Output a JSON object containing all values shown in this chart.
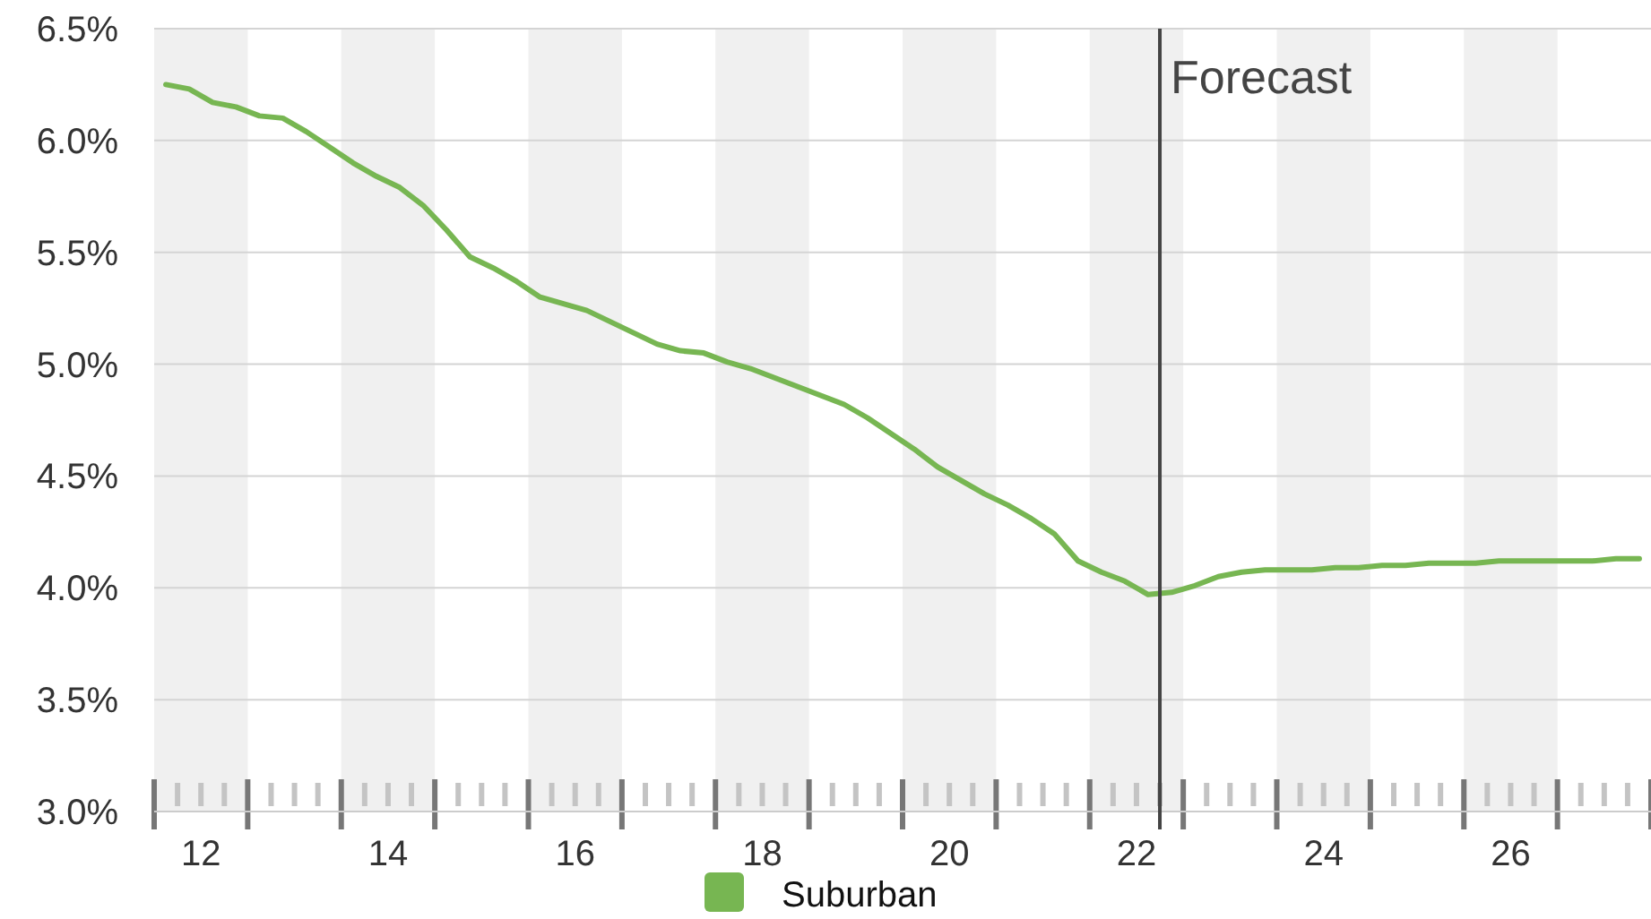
{
  "chart_data": {
    "type": "line",
    "x": [
      12.125,
      12.375,
      12.625,
      12.875,
      13.125,
      13.375,
      13.625,
      13.875,
      14.125,
      14.375,
      14.625,
      14.875,
      15.125,
      15.375,
      15.625,
      15.875,
      16.125,
      16.375,
      16.625,
      16.875,
      17.125,
      17.375,
      17.625,
      17.875,
      18.125,
      18.375,
      18.625,
      18.875,
      19.125,
      19.375,
      19.625,
      19.875,
      20.125,
      20.375,
      20.625,
      20.875,
      21.125,
      21.375,
      21.625,
      21.875,
      22.125,
      22.375,
      22.625,
      22.875,
      23.125,
      23.375,
      23.625,
      23.875,
      24.125,
      24.375,
      24.625,
      24.875,
      25.125,
      25.375,
      25.625,
      25.875,
      26.125,
      26.375,
      26.625,
      26.875,
      27.125,
      27.375,
      27.625,
      27.875
    ],
    "series": [
      {
        "name": "Suburban",
        "color": "#77b652",
        "values": [
          6.25,
          6.23,
          6.17,
          6.15,
          6.11,
          6.1,
          6.04,
          5.97,
          5.9,
          5.84,
          5.79,
          5.71,
          5.6,
          5.48,
          5.43,
          5.37,
          5.3,
          5.27,
          5.24,
          5.19,
          5.14,
          5.09,
          5.06,
          5.05,
          5.01,
          4.98,
          4.94,
          4.9,
          4.86,
          4.82,
          4.76,
          4.69,
          4.62,
          4.54,
          4.48,
          4.42,
          4.37,
          4.31,
          4.24,
          4.12,
          4.07,
          4.03,
          3.97,
          3.98,
          4.01,
          4.05,
          4.07,
          4.08,
          4.08,
          4.08,
          4.09,
          4.09,
          4.1,
          4.1,
          4.11,
          4.11,
          4.11,
          4.12,
          4.12,
          4.12,
          4.12,
          4.12,
          4.13,
          4.13
        ]
      }
    ],
    "xlim": [
      12,
      28
    ],
    "xticks": [
      {
        "value": 12.5,
        "label": "12"
      },
      {
        "value": 14.5,
        "label": "14"
      },
      {
        "value": 16.5,
        "label": "16"
      },
      {
        "value": 18.5,
        "label": "18"
      },
      {
        "value": 20.5,
        "label": "20"
      },
      {
        "value": 22.5,
        "label": "22"
      },
      {
        "value": 24.5,
        "label": "24"
      },
      {
        "value": 26.5,
        "label": "26"
      }
    ],
    "ylim": [
      3.0,
      6.5
    ],
    "yticks": [
      {
        "value": 3.0,
        "label": "3.0%"
      },
      {
        "value": 3.5,
        "label": "3.5%"
      },
      {
        "value": 4.0,
        "label": "4.0%"
      },
      {
        "value": 4.5,
        "label": "4.5%"
      },
      {
        "value": 5.0,
        "label": "5.0%"
      },
      {
        "value": 5.5,
        "label": "5.5%"
      },
      {
        "value": 6.0,
        "label": "6.0%"
      },
      {
        "value": 6.5,
        "label": "6.5%"
      }
    ],
    "grid": "y",
    "legend": "bottom",
    "marker": "none",
    "line_style": "solid",
    "ref_lines": [
      {
        "axis": "x",
        "value": 22.75,
        "label": "Forecast",
        "color": "#444444"
      }
    ],
    "bands": [
      {
        "axis": "x",
        "from": 12,
        "to": 13,
        "color": "#f0f0f0"
      },
      {
        "axis": "x",
        "from": 14,
        "to": 15,
        "color": "#f0f0f0"
      },
      {
        "axis": "x",
        "from": 16,
        "to": 17,
        "color": "#f0f0f0"
      },
      {
        "axis": "x",
        "from": 18,
        "to": 19,
        "color": "#f0f0f0"
      },
      {
        "axis": "x",
        "from": 20,
        "to": 21,
        "color": "#f0f0f0"
      },
      {
        "axis": "x",
        "from": 22,
        "to": 23,
        "color": "#f0f0f0"
      },
      {
        "axis": "x",
        "from": 24,
        "to": 25,
        "color": "#f0f0f0"
      },
      {
        "axis": "x",
        "from": 26,
        "to": 27,
        "color": "#f0f0f0"
      }
    ]
  }
}
